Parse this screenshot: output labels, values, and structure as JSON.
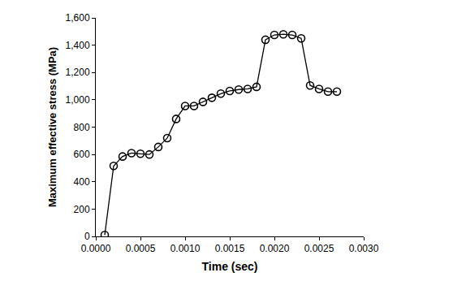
{
  "chart_data": {
    "type": "line",
    "x_label": "Time (sec)",
    "y_label": "Maximum effective stress (MPa)",
    "x": [
      0.0001,
      0.0002,
      0.0003,
      0.0004,
      0.0005,
      0.0006,
      0.0007,
      0.0008,
      0.0009,
      0.001,
      0.0011,
      0.0012,
      0.0013,
      0.0014,
      0.0015,
      0.0016,
      0.0017,
      0.0018,
      0.0019,
      0.002,
      0.0021,
      0.0022,
      0.0023,
      0.0024,
      0.0025,
      0.0026,
      0.0027
    ],
    "values": [
      10,
      516,
      585,
      610,
      605,
      600,
      655,
      720,
      860,
      955,
      955,
      985,
      1015,
      1045,
      1065,
      1075,
      1080,
      1095,
      1440,
      1475,
      1480,
      1475,
      1450,
      1105,
      1080,
      1060,
      1060
    ],
    "color": "#000000",
    "marker": "circle-open",
    "line_style": "solid",
    "grid": false,
    "xlim": [
      0,
      0.003
    ],
    "xticks": [
      {
        "value": 0,
        "label": "0.0000"
      },
      {
        "value": 0.0005,
        "label": "0.0005"
      },
      {
        "value": 0.001,
        "label": "0.0010"
      },
      {
        "value": 0.0015,
        "label": "0.0015"
      },
      {
        "value": 0.002,
        "label": "0.0020"
      },
      {
        "value": 0.0025,
        "label": "0.0025"
      },
      {
        "value": 0.003,
        "label": "0.0030"
      }
    ],
    "ylim": [
      0,
      1600
    ],
    "yticks": [
      0,
      200,
      400,
      600,
      800,
      {
        "value": 1000,
        "label": "1,000"
      },
      {
        "value": 1200,
        "label": "1,200"
      },
      {
        "value": 1400,
        "label": "1,400"
      },
      {
        "value": 1600,
        "label": "1,600"
      }
    ]
  }
}
